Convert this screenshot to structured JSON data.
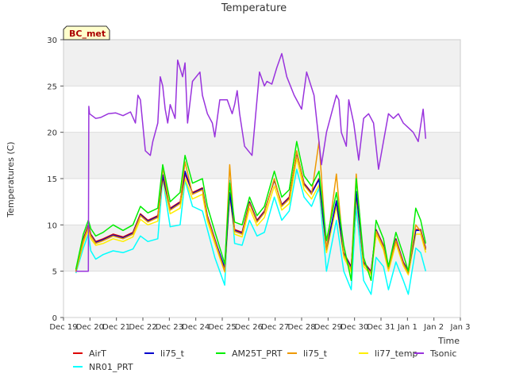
{
  "chart_data": {
    "type": "line",
    "title": "Temperature",
    "xlabel": "Time",
    "ylabel": "Temperatures (C)",
    "site_label": "BC_met",
    "x_ticks": [
      "Dec 19",
      "Dec 20",
      "Dec 21",
      "Dec 22",
      "Dec 23",
      "Dec 24",
      "Dec 25",
      "Dec 26",
      "Dec 27",
      "Dec 28",
      "Dec 29",
      "Dec 30",
      "Dec 31",
      "Jan 1",
      "Jan 2",
      "Jan 3"
    ],
    "y_ticks": [
      "0",
      "5",
      "10",
      "15",
      "20",
      "25",
      "30"
    ],
    "ylim": [
      0,
      30
    ],
    "x_range_days": [
      0,
      16
    ],
    "x_start_label": "Dec 19",
    "grid": "horizontal bands",
    "legend_position": "bottom",
    "series": [
      {
        "name": "AirT",
        "color": "#dd0000",
        "x": [
          0.5,
          0.8,
          1.0,
          1.1,
          1.3,
          1.6,
          2.0,
          2.4,
          2.8,
          3.1,
          3.4,
          3.8,
          4.0,
          4.3,
          4.7,
          4.9,
          5.2,
          5.6,
          5.8,
          6.1,
          6.5,
          6.7,
          6.9,
          7.2,
          7.5,
          7.8,
          8.1,
          8.5,
          8.8,
          9.1,
          9.4,
          9.7,
          10.0,
          10.3,
          10.6,
          11.0,
          11.3,
          11.6,
          11.8,
          12.1,
          12.4,
          12.6,
          12.9,
          13.1,
          13.4,
          13.7,
          13.9,
          14.2,
          14.4,
          14.6
        ],
        "y": [
          5,
          8.5,
          10,
          9,
          8.2,
          8.5,
          9,
          8.7,
          9.2,
          11.2,
          10.5,
          11,
          15.2,
          11.8,
          12.5,
          15.5,
          13.5,
          14,
          11,
          8.5,
          5.2,
          13.5,
          9.5,
          9.2,
          12.5,
          10.5,
          11.5,
          14.8,
          12.2,
          13,
          17.8,
          14.5,
          13.5,
          15,
          7.5,
          12.5,
          7,
          5.5,
          13.5,
          6,
          5,
          9.5,
          7.8,
          5.5,
          8.5,
          6,
          5,
          9.5,
          9.5,
          7.5
        ]
      },
      {
        "name": "NR01_PRT",
        "color": "#00ffff",
        "x": [
          0.5,
          0.8,
          1.0,
          1.1,
          1.3,
          1.6,
          2.0,
          2.4,
          2.8,
          3.1,
          3.4,
          3.8,
          4.0,
          4.3,
          4.7,
          4.9,
          5.2,
          5.6,
          5.8,
          6.1,
          6.5,
          6.7,
          6.9,
          7.2,
          7.5,
          7.8,
          8.1,
          8.5,
          8.8,
          9.1,
          9.4,
          9.7,
          10.0,
          10.3,
          10.6,
          11.0,
          11.3,
          11.6,
          11.8,
          12.1,
          12.4,
          12.6,
          12.9,
          13.1,
          13.4,
          13.7,
          13.9,
          14.2,
          14.4,
          14.6
        ],
        "y": [
          4.8,
          7.5,
          9,
          7.2,
          6.3,
          6.8,
          7.2,
          7,
          7.4,
          8.8,
          8.2,
          8.5,
          15,
          9.8,
          10,
          14.8,
          12,
          11.5,
          9.5,
          6.5,
          3.5,
          14.8,
          8,
          7.8,
          10.5,
          8.8,
          9.2,
          13,
          10.5,
          11.5,
          16,
          13,
          12,
          14,
          5,
          10.5,
          5,
          3,
          12,
          4,
          2.5,
          6.5,
          5.5,
          3,
          6,
          4,
          2.5,
          7.5,
          7,
          5
        ]
      },
      {
        "name": "li75_t",
        "color": "#0000cc",
        "x": [
          0.5,
          0.8,
          1.0,
          1.1,
          1.3,
          1.6,
          2.0,
          2.4,
          2.8,
          3.1,
          3.4,
          3.8,
          4.0,
          4.3,
          4.7,
          4.9,
          5.2,
          5.6,
          5.8,
          6.1,
          6.5,
          6.7,
          6.9,
          7.2,
          7.5,
          7.8,
          8.1,
          8.5,
          8.8,
          9.1,
          9.4,
          9.7,
          10.0,
          10.3,
          10.6,
          11.0,
          11.3,
          11.6,
          11.8,
          12.1,
          12.4,
          12.6,
          12.9,
          13.1,
          13.4,
          13.7,
          13.9,
          14.2,
          14.4,
          14.6
        ],
        "y": [
          5,
          8.4,
          9.9,
          8.9,
          8.1,
          8.4,
          8.9,
          8.6,
          9.1,
          11.1,
          10.4,
          10.9,
          15.4,
          11.7,
          12.4,
          15.8,
          13.4,
          13.9,
          10.9,
          8.4,
          5.4,
          13.4,
          9.4,
          9.1,
          12.4,
          10.4,
          11.4,
          14.9,
          12.1,
          12.9,
          17.9,
          14.4,
          13.4,
          14.9,
          7.4,
          12.6,
          6.9,
          5.4,
          13.6,
          5.9,
          4.9,
          9.4,
          7.7,
          5.4,
          8.4,
          5.9,
          4.9,
          9.4,
          9.4,
          7.4
        ]
      },
      {
        "name": "AM25T_PRT",
        "color": "#00ee00",
        "x": [
          0.5,
          0.8,
          1.0,
          1.1,
          1.3,
          1.6,
          2.0,
          2.4,
          2.8,
          3.1,
          3.4,
          3.8,
          4.0,
          4.3,
          4.7,
          4.9,
          5.2,
          5.6,
          5.8,
          6.1,
          6.5,
          6.7,
          6.9,
          7.2,
          7.5,
          7.8,
          8.1,
          8.5,
          8.8,
          9.1,
          9.4,
          9.7,
          10.0,
          10.3,
          10.6,
          11.0,
          11.3,
          11.6,
          11.8,
          12.1,
          12.4,
          12.6,
          12.9,
          13.1,
          13.4,
          13.7,
          13.9,
          14.2,
          14.4,
          14.6
        ],
        "y": [
          5.2,
          9,
          10.5,
          9.6,
          8.8,
          9.2,
          10,
          9.4,
          10,
          12,
          11.3,
          11.8,
          16.5,
          12.5,
          13.5,
          17.5,
          14.5,
          15,
          12,
          9.3,
          5.8,
          14.5,
          10.3,
          10,
          13,
          11,
          12,
          15.8,
          13,
          13.8,
          19,
          15.3,
          14.2,
          15.8,
          8.3,
          13.5,
          7.8,
          4,
          15,
          6.5,
          4,
          10.5,
          8.5,
          5.5,
          9.2,
          6.8,
          5,
          11.8,
          10.5,
          8
        ]
      },
      {
        "name": "li75_t",
        "color": "#ee9900",
        "x": [
          0.5,
          0.8,
          1.0,
          1.1,
          1.3,
          1.6,
          2.0,
          2.4,
          2.8,
          3.1,
          3.4,
          3.8,
          4.0,
          4.3,
          4.7,
          4.9,
          5.2,
          5.6,
          5.8,
          6.1,
          6.5,
          6.7,
          6.9,
          7.2,
          7.5,
          7.8,
          8.1,
          8.5,
          8.8,
          9.1,
          9.4,
          9.7,
          10.0,
          10.3,
          10.6,
          11.0,
          11.3,
          11.6,
          11.8,
          12.1,
          12.4,
          12.6,
          12.9,
          13.1,
          13.4,
          13.7,
          13.9,
          14.2,
          14.4,
          14.6
        ],
        "y": [
          5,
          8.3,
          9.8,
          8.8,
          8,
          8.3,
          8.8,
          8.5,
          9,
          11,
          10.3,
          10.8,
          16.2,
          11.6,
          12.3,
          16.8,
          13.3,
          13.8,
          10.8,
          8.3,
          5,
          16.5,
          9.3,
          9,
          12.3,
          10.3,
          11.3,
          15,
          12,
          12.8,
          18,
          14.3,
          13.3,
          19,
          7.3,
          15.5,
          6.8,
          5.2,
          15.5,
          5.8,
          4.8,
          9.3,
          7.6,
          5.3,
          8.3,
          5.8,
          4.8,
          10,
          9.3,
          7.3
        ]
      },
      {
        "name": "li77_temp",
        "color": "#ffee00",
        "x": [
          0.5,
          0.8,
          1.0,
          1.1,
          1.3,
          1.6,
          2.0,
          2.4,
          2.8,
          3.1,
          3.4,
          3.8,
          4.0,
          4.3,
          4.7,
          4.9,
          5.2,
          5.6,
          5.8,
          6.1,
          6.5,
          6.7,
          6.9,
          7.2,
          7.5,
          7.8,
          8.1,
          8.5,
          8.8,
          9.1,
          9.4,
          9.7,
          10.0,
          10.3,
          10.6,
          11.0,
          11.3,
          11.6,
          11.8,
          12.1,
          12.4,
          12.6,
          12.9,
          13.1,
          13.4,
          13.7,
          13.9,
          14.2,
          14.4,
          14.6
        ],
        "y": [
          4.9,
          8,
          9.5,
          8.5,
          7.8,
          8,
          8.5,
          8.2,
          8.7,
          10.6,
          10,
          10.4,
          15,
          11.2,
          11.8,
          15,
          12.8,
          13.3,
          10.4,
          8,
          4.9,
          13,
          9,
          8.7,
          11.8,
          9.9,
          10.8,
          14.2,
          11.6,
          12.3,
          17.2,
          13.8,
          12.8,
          14.3,
          7,
          12,
          6.5,
          4.9,
          13,
          5.5,
          4.6,
          9,
          7.3,
          5,
          8,
          5.6,
          4.6,
          9,
          9,
          7
        ]
      },
      {
        "name": "Tsonic",
        "color": "#9933dd",
        "x": [
          0.5,
          0.9,
          1.0,
          1.02,
          1.05,
          1.3,
          1.5,
          1.8,
          2.1,
          2.4,
          2.7,
          2.9,
          3.0,
          3.1,
          3.3,
          3.5,
          3.6,
          3.8,
          3.9,
          4.0,
          4.1,
          4.2,
          4.3,
          4.5,
          4.6,
          4.8,
          4.9,
          5.0,
          5.2,
          5.5,
          5.6,
          5.8,
          6.0,
          6.1,
          6.3,
          6.6,
          6.8,
          6.9,
          7.0,
          7.1,
          7.3,
          7.6,
          7.9,
          8.1,
          8.2,
          8.4,
          8.6,
          8.8,
          9.0,
          9.3,
          9.6,
          9.8,
          10.1,
          10.4,
          10.6,
          10.9,
          11.0,
          11.1,
          11.2,
          11.4,
          11.5,
          11.7,
          11.9,
          12.1,
          12.3,
          12.5,
          12.7,
          12.9,
          13.1,
          13.3,
          13.5,
          13.7,
          13.9,
          14.1,
          14.3,
          14.5,
          14.6
        ],
        "y": [
          5,
          5,
          5,
          22.8,
          22,
          21.5,
          21.6,
          22,
          22.1,
          21.8,
          22.2,
          21,
          24,
          23.5,
          18,
          17.5,
          19,
          21,
          26,
          25,
          22.5,
          21,
          23,
          21.5,
          27.8,
          26,
          27.5,
          21,
          25.5,
          26.5,
          24,
          22,
          21,
          19.5,
          23.5,
          23.5,
          22,
          23,
          24.5,
          22,
          18.5,
          17.5,
          26.5,
          25,
          25.5,
          25.2,
          27,
          28.5,
          26,
          24,
          22.5,
          26.5,
          24,
          16.5,
          20,
          23,
          24,
          23.5,
          20,
          18.5,
          23.5,
          21,
          17,
          21.5,
          22,
          21,
          16,
          19,
          22,
          21.5,
          22,
          21,
          20.5,
          20,
          19,
          22.5,
          19.3
        ]
      }
    ]
  }
}
